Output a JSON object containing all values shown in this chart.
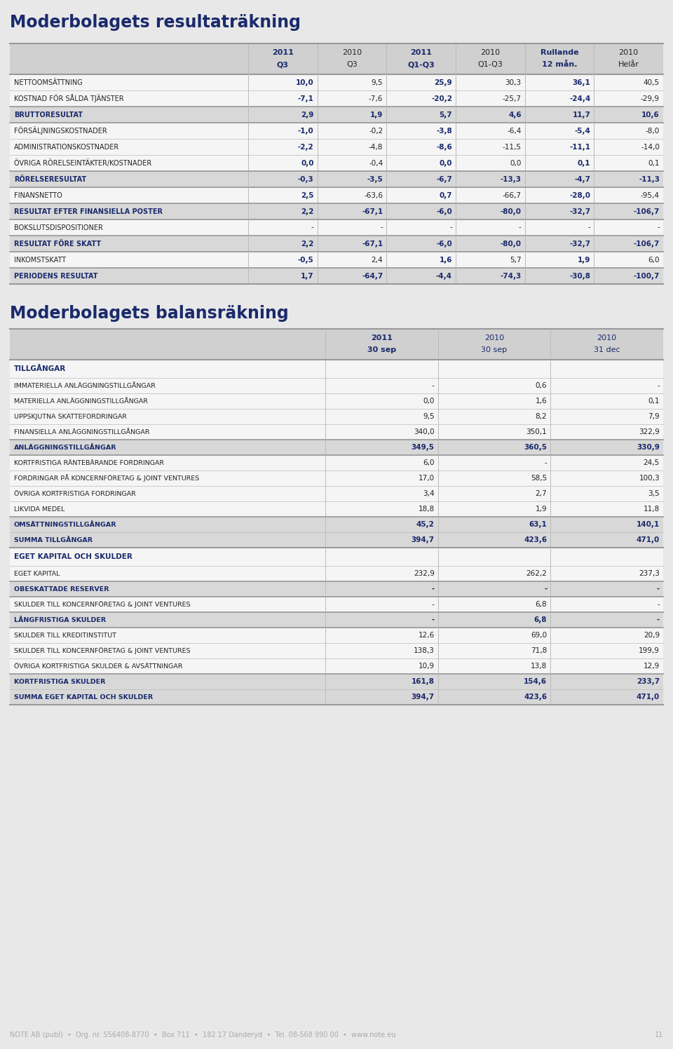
{
  "title1": "Moderbolagets resultaträkning",
  "title2": "Moderbolagets balansräkning",
  "footer": "NOTE AB (publ)  •  Org. nr. 556408-8770  •  Box 711  •  182 17 Danderyd  •  Tel. 08-568 990 00  •  www.note.eu",
  "footer_page": "11",
  "resultat_headers": [
    [
      "2011",
      "2010",
      "2011",
      "2010",
      "Rullande",
      "2010"
    ],
    [
      "Q3",
      "Q3",
      "Q1-Q3",
      "Q1-Q3",
      "12 mån.",
      "Helår"
    ]
  ],
  "resultat_header_bold": [
    true,
    false,
    true,
    false,
    true,
    false
  ],
  "resultat_rows": [
    {
      "label": "NETTOOMSÄTTNING",
      "bold": false,
      "highlight": false,
      "separator_before": false,
      "values": [
        "10,0",
        "9,5",
        "25,9",
        "30,3",
        "36,1",
        "40,5"
      ],
      "val_bold": [
        true,
        false,
        true,
        false,
        true,
        false
      ]
    },
    {
      "label": "KOSTNAD FÖR SÅLDA TJÄNSTER",
      "bold": false,
      "highlight": false,
      "separator_before": false,
      "values": [
        "-7,1",
        "-7,6",
        "-20,2",
        "-25,7",
        "-24,4",
        "-29,9"
      ],
      "val_bold": [
        true,
        false,
        true,
        false,
        true,
        false
      ]
    },
    {
      "label": "BRUTTORESULTAT",
      "bold": true,
      "highlight": true,
      "separator_before": true,
      "values": [
        "2,9",
        "1,9",
        "5,7",
        "4,6",
        "11,7",
        "10,6"
      ],
      "val_bold": [
        true,
        true,
        true,
        true,
        true,
        true
      ]
    },
    {
      "label": "FÖRSÄLJNINGSKOSTNADER",
      "bold": false,
      "highlight": false,
      "separator_before": true,
      "values": [
        "-1,0",
        "-0,2",
        "-3,8",
        "-6,4",
        "-5,4",
        "-8,0"
      ],
      "val_bold": [
        true,
        false,
        true,
        false,
        true,
        false
      ]
    },
    {
      "label": "ADMINISTRATIONSKOSTNADER",
      "bold": false,
      "highlight": false,
      "separator_before": false,
      "values": [
        "-2,2",
        "-4,8",
        "-8,6",
        "-11,5",
        "-11,1",
        "-14,0"
      ],
      "val_bold": [
        true,
        false,
        true,
        false,
        true,
        false
      ]
    },
    {
      "label": "ÖVRIGA RÖRELSEINTÄKTER/KOSTNADER",
      "bold": false,
      "highlight": false,
      "separator_before": false,
      "values": [
        "0,0",
        "-0,4",
        "0,0",
        "0,0",
        "0,1",
        "0,1"
      ],
      "val_bold": [
        true,
        false,
        true,
        false,
        true,
        false
      ]
    },
    {
      "label": "RÖRELSERESULTAT",
      "bold": true,
      "highlight": true,
      "separator_before": true,
      "values": [
        "-0,3",
        "-3,5",
        "-6,7",
        "-13,3",
        "-4,7",
        "-11,3"
      ],
      "val_bold": [
        true,
        true,
        true,
        true,
        true,
        true
      ]
    },
    {
      "label": "FINANSNETTO",
      "bold": false,
      "highlight": false,
      "separator_before": true,
      "values": [
        "2,5",
        "-63,6",
        "0,7",
        "-66,7",
        "-28,0",
        "-95,4"
      ],
      "val_bold": [
        true,
        false,
        true,
        false,
        true,
        false
      ]
    },
    {
      "label": "RESULTAT EFTER FINANSIELLA POSTER",
      "bold": true,
      "highlight": true,
      "separator_before": true,
      "values": [
        "2,2",
        "-67,1",
        "-6,0",
        "-80,0",
        "-32,7",
        "-106,7"
      ],
      "val_bold": [
        true,
        true,
        true,
        true,
        true,
        true
      ]
    },
    {
      "label": "BOKSLUTSDISPOSITIONER",
      "bold": false,
      "highlight": false,
      "separator_before": true,
      "values": [
        "-",
        "-",
        "-",
        "-",
        "-",
        "-"
      ],
      "val_bold": [
        false,
        false,
        false,
        false,
        false,
        false
      ]
    },
    {
      "label": "RESULTAT FÖRE SKATT",
      "bold": true,
      "highlight": true,
      "separator_before": true,
      "values": [
        "2,2",
        "-67,1",
        "-6,0",
        "-80,0",
        "-32,7",
        "-106,7"
      ],
      "val_bold": [
        true,
        true,
        true,
        true,
        true,
        true
      ]
    },
    {
      "label": "INKOMSTSKATT",
      "bold": false,
      "highlight": false,
      "separator_before": true,
      "values": [
        "-0,5",
        "2,4",
        "1,6",
        "5,7",
        "1,9",
        "6,0"
      ],
      "val_bold": [
        true,
        false,
        true,
        false,
        true,
        false
      ]
    },
    {
      "label": "PERIODENS RESULTAT",
      "bold": true,
      "highlight": true,
      "separator_before": true,
      "values": [
        "1,7",
        "-64,7",
        "-4,4",
        "-74,3",
        "-30,8",
        "-100,7"
      ],
      "val_bold": [
        true,
        true,
        true,
        true,
        true,
        true
      ]
    }
  ],
  "balans_headers": [
    [
      "2011",
      "2010",
      "2010"
    ],
    [
      "30 sep",
      "30 sep",
      "31 dec"
    ]
  ],
  "balans_header_bold": [
    true,
    false,
    false
  ],
  "balans_sections": [
    {
      "section_label": "TILLGÅNGAR",
      "rows": [
        {
          "label": "IMMATERIELLA ANLÄGGNINGSTILLGÅNGAR",
          "bold": false,
          "highlight": false,
          "separator_before": false,
          "values": [
            "-",
            "0,6",
            "-"
          ],
          "val_bold": [
            false,
            false,
            false
          ]
        },
        {
          "label": "MATERIELLA ANLÄGGNINGSTILLGÅNGAR",
          "bold": false,
          "highlight": false,
          "separator_before": false,
          "values": [
            "0,0",
            "1,6",
            "0,1"
          ],
          "val_bold": [
            false,
            false,
            false
          ]
        },
        {
          "label": "UPPSKJUTNA SKATTEFORDRINGAR",
          "bold": false,
          "highlight": false,
          "separator_before": false,
          "values": [
            "9,5",
            "8,2",
            "7,9"
          ],
          "val_bold": [
            true,
            false,
            false
          ]
        },
        {
          "label": "FINANSIELLA ANLÄGGNINGSTILLGÅNGAR",
          "bold": false,
          "highlight": false,
          "separator_before": false,
          "values": [
            "340,0",
            "350,1",
            "322,9"
          ],
          "val_bold": [
            true,
            false,
            false
          ]
        },
        {
          "label": "ANLÄGGNINGSTILLGÅNGAR",
          "bold": true,
          "highlight": true,
          "separator_before": true,
          "values": [
            "349,5",
            "360,5",
            "330,9"
          ],
          "val_bold": [
            true,
            true,
            true
          ]
        },
        {
          "label": "KORTFRISTIGA RÄNTEBÄRANDE FORDRINGAR",
          "bold": false,
          "highlight": false,
          "separator_before": true,
          "values": [
            "6,0",
            "-",
            "24,5"
          ],
          "val_bold": [
            true,
            false,
            false
          ]
        },
        {
          "label": "FORDRINGAR PÅ KONCERNFÖRETAG & JOINT VENTURES",
          "bold": false,
          "highlight": false,
          "separator_before": false,
          "values": [
            "17,0",
            "58,5",
            "100,3"
          ],
          "val_bold": [
            true,
            false,
            false
          ]
        },
        {
          "label": "ÖVRIGA KORTFRISTIGA FORDRINGAR",
          "bold": false,
          "highlight": false,
          "separator_before": false,
          "values": [
            "3,4",
            "2,7",
            "3,5"
          ],
          "val_bold": [
            false,
            false,
            false
          ]
        },
        {
          "label": "LIKVIDA MEDEL",
          "bold": false,
          "highlight": false,
          "separator_before": false,
          "values": [
            "18,8",
            "1,9",
            "11,8"
          ],
          "val_bold": [
            false,
            false,
            false
          ]
        },
        {
          "label": "OMSÄTTNINGSTILLGÅNGAR",
          "bold": true,
          "highlight": true,
          "separator_before": true,
          "values": [
            "45,2",
            "63,1",
            "140,1"
          ],
          "val_bold": [
            true,
            true,
            true
          ]
        },
        {
          "label": "SUMMA TILLGÅNGAR",
          "bold": true,
          "highlight": true,
          "separator_before": false,
          "values": [
            "394,7",
            "423,6",
            "471,0"
          ],
          "val_bold": [
            true,
            true,
            true
          ]
        }
      ]
    },
    {
      "section_label": "EGET KAPITAL OCH SKULDER",
      "rows": [
        {
          "label": "EGET KAPITAL",
          "bold": false,
          "highlight": false,
          "separator_before": false,
          "values": [
            "232,9",
            "262,2",
            "237,3"
          ],
          "val_bold": [
            false,
            false,
            false
          ]
        },
        {
          "label": "OBESKATTADE RESERVER",
          "bold": true,
          "highlight": true,
          "separator_before": true,
          "values": [
            "-",
            "-",
            "-"
          ],
          "val_bold": [
            true,
            true,
            true
          ]
        },
        {
          "label": "SKULDER TILL KONCERNFÖRETAG & JOINT VENTURES",
          "bold": false,
          "highlight": false,
          "separator_before": true,
          "values": [
            "-",
            "6,8",
            "-"
          ],
          "val_bold": [
            false,
            false,
            false
          ]
        },
        {
          "label": "LÅNGFRISTIGA SKULDER",
          "bold": true,
          "highlight": true,
          "separator_before": true,
          "values": [
            "-",
            "6,8",
            "-"
          ],
          "val_bold": [
            true,
            true,
            true
          ]
        },
        {
          "label": "SKULDER TILL KREDITINSTITUT",
          "bold": false,
          "highlight": false,
          "separator_before": true,
          "values": [
            "12,6",
            "69,0",
            "20,9"
          ],
          "val_bold": [
            false,
            false,
            false
          ]
        },
        {
          "label": "SKULDER TILL KONCERNFÖRETAG & JOINT VENTURES",
          "bold": false,
          "highlight": false,
          "separator_before": false,
          "values": [
            "138,3",
            "71,8",
            "199,9"
          ],
          "val_bold": [
            true,
            false,
            false
          ]
        },
        {
          "label": "ÖVRIGA KORTFRISTIGA SKULDER & AVSÄTTNINGAR",
          "bold": false,
          "highlight": false,
          "separator_before": false,
          "values": [
            "10,9",
            "13,8",
            "12,9"
          ],
          "val_bold": [
            false,
            false,
            false
          ]
        },
        {
          "label": "KORTFRISTIGA SKULDER",
          "bold": true,
          "highlight": true,
          "separator_before": true,
          "values": [
            "161,8",
            "154,6",
            "233,7"
          ],
          "val_bold": [
            true,
            true,
            true
          ]
        },
        {
          "label": "SUMMA EGET KAPITAL OCH SKULDER",
          "bold": true,
          "highlight": true,
          "separator_before": false,
          "values": [
            "394,7",
            "423,6",
            "471,0"
          ],
          "val_bold": [
            true,
            true,
            true
          ]
        }
      ]
    }
  ],
  "page_bg": "#e8e8e8",
  "table_bg_light": "#f0f0f0",
  "table_bg_white": "#ffffff",
  "header_bg": "#d0d0d0",
  "highlight_bg": "#d8d8d8",
  "dark_blue": "#1a2a6c",
  "black": "#222222",
  "line_color": "#bbbbbb",
  "sep_line_color": "#999999",
  "footer_color": "#aaaaaa"
}
